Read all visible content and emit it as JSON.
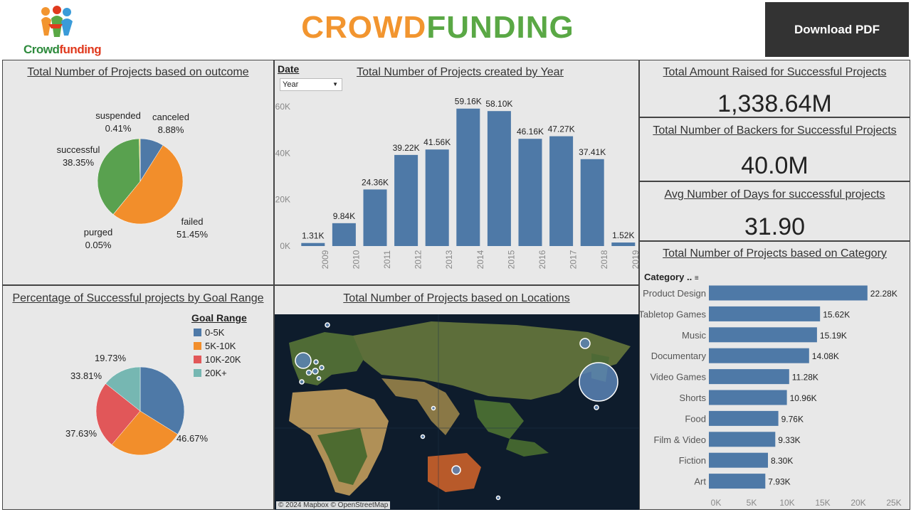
{
  "header": {
    "logo_text_1": "Crowd",
    "logo_text_2": "funding",
    "title_part1": "CROWD",
    "title_part2": "FUNDING",
    "download_label": "Download PDF"
  },
  "colors": {
    "blue": "#4e79a7",
    "orange": "#f28e2b",
    "red": "#e15759",
    "teal": "#76b7b2",
    "green": "#59a14f",
    "yellow": "#edc948"
  },
  "panels": {
    "outcome_title": "Total Number of Projects based on outcome",
    "year_title": "Total Number of Projects created by Year",
    "goal_title": "Percentage of Successful projects by Goal Range",
    "locations_title": "Total Number of Projects based on Locations",
    "category_title": "Total Number of Projects based on  Category"
  },
  "kpis": [
    {
      "title": "Total Amount Raised for Successful Projects",
      "value": "1,338.64M"
    },
    {
      "title": "Total Number of Backers for Successful Projects",
      "value": "40.0M"
    },
    {
      "title": "Avg Number of Days for successful projects",
      "value": "31.90"
    }
  ],
  "date_filter": {
    "label": "Date",
    "value": "Year"
  },
  "goal_legend": {
    "title": "Goal Range",
    "items": [
      "0-5K",
      "5K-10K",
      "10K-20K",
      "20K+"
    ]
  },
  "category_header": "Category ..",
  "map": {
    "credit": "© 2024 Mapbox © OpenStreetMap"
  },
  "chart_data": [
    {
      "type": "pie",
      "title": "Total Number of Projects based on outcome",
      "series": [
        {
          "name": "canceled",
          "value": 8.88,
          "label": "8.88%"
        },
        {
          "name": "failed",
          "value": 51.45,
          "label": "51.45%"
        },
        {
          "name": "purged",
          "value": 0.05,
          "label": "0.05%"
        },
        {
          "name": "successful",
          "value": 38.35,
          "label": "38.35%"
        },
        {
          "name": "suspended",
          "value": 0.41,
          "label": "0.41%"
        }
      ]
    },
    {
      "type": "bar",
      "title": "Total Number of Projects created by Year",
      "categories": [
        "2009",
        "2010",
        "2011",
        "2012",
        "2013",
        "2014",
        "2015",
        "2016",
        "2017",
        "2018",
        "2019"
      ],
      "values": [
        1310,
        9840,
        24360,
        39220,
        41560,
        59160,
        58100,
        46160,
        47270,
        37410,
        1520
      ],
      "labels": [
        "1.31K",
        "9.84K",
        "24.36K",
        "39.22K",
        "41.56K",
        "59.16K",
        "58.10K",
        "46.16K",
        "47.27K",
        "37.41K",
        "1.52K"
      ],
      "ylim": [
        0,
        60000
      ],
      "yticks": [
        "0K",
        "20K",
        "40K",
        "60K"
      ]
    },
    {
      "type": "pie",
      "title": "Percentage of Successful projects by Goal Range",
      "series": [
        {
          "name": "0-5K",
          "value": 46.67,
          "label": "46.67%"
        },
        {
          "name": "5K-10K",
          "value": 37.63,
          "label": "37.63%"
        },
        {
          "name": "10K-20K",
          "value": 33.81,
          "label": "33.81%"
        },
        {
          "name": "20K+",
          "value": 19.73,
          "label": "19.73%"
        }
      ]
    },
    {
      "type": "bar",
      "title": "Total Number of Projects based on  Category",
      "orientation": "horizontal",
      "categories": [
        "Product Design",
        "Tabletop Games",
        "Music",
        "Documentary",
        "Video Games",
        "Shorts",
        "Food",
        "Film & Video",
        "Fiction",
        "Art"
      ],
      "values": [
        22280,
        15620,
        15190,
        14080,
        11280,
        10960,
        9760,
        9330,
        8300,
        7930
      ],
      "labels": [
        "22.28K",
        "15.62K",
        "15.19K",
        "14.08K",
        "11.28K",
        "10.96K",
        "9.76K",
        "9.33K",
        "8.30K",
        "7.93K"
      ],
      "xlim": [
        0,
        25000
      ],
      "xticks": [
        "0K",
        "5K",
        "10K",
        "15K",
        "20K",
        "25K"
      ]
    }
  ]
}
